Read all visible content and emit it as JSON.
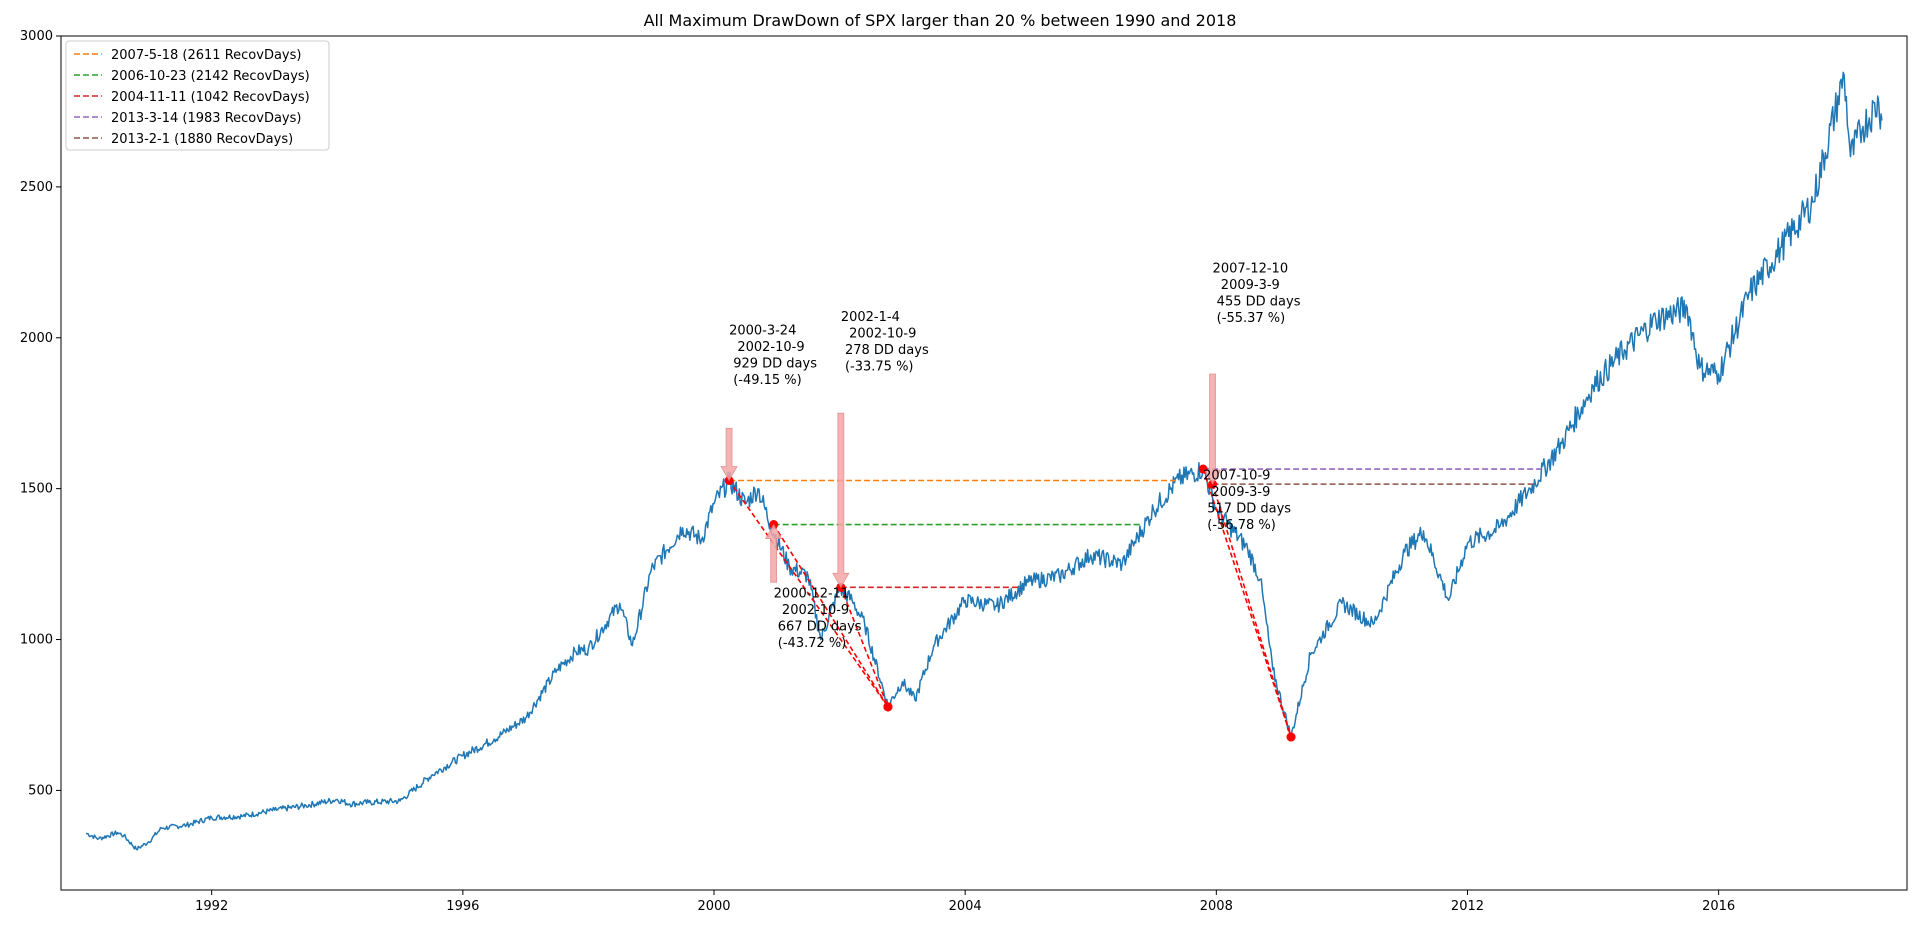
{
  "chart_data": {
    "type": "line",
    "title": "All Maximum DrawDown of SPX larger than 20 % between 1990 and 2018",
    "xlabel": "",
    "ylabel": "",
    "xlim": [
      1989.6,
      2019.0
    ],
    "ylim": [
      170,
      3000
    ],
    "x_ticks": [
      1992,
      1996,
      2000,
      2004,
      2008,
      2012,
      2016
    ],
    "y_ticks": [
      500,
      1000,
      1500,
      2000,
      2500,
      3000
    ],
    "grid": false,
    "legend_position": "top-left",
    "colors": {
      "price": "#1f77b4",
      "drawdown": "#ff0000",
      "arrow": "#f4a6a6"
    },
    "price_series": {
      "name": "",
      "points": [
        [
          1990.0,
          358
        ],
        [
          1990.2,
          340
        ],
        [
          1990.5,
          360
        ],
        [
          1990.6,
          350
        ],
        [
          1990.8,
          305
        ],
        [
          1991.0,
          330
        ],
        [
          1991.2,
          375
        ],
        [
          1991.6,
          385
        ],
        [
          1992.0,
          410
        ],
        [
          1992.5,
          415
        ],
        [
          1993.0,
          435
        ],
        [
          1993.5,
          450
        ],
        [
          1994.0,
          470
        ],
        [
          1994.2,
          455
        ],
        [
          1994.5,
          460
        ],
        [
          1995.0,
          465
        ],
        [
          1995.5,
          550
        ],
        [
          1996.0,
          615
        ],
        [
          1996.5,
          670
        ],
        [
          1997.0,
          740
        ],
        [
          1997.5,
          900
        ],
        [
          1997.8,
          960
        ],
        [
          1998.0,
          970
        ],
        [
          1998.5,
          1120
        ],
        [
          1998.7,
          980
        ],
        [
          1999.0,
          1230
        ],
        [
          1999.5,
          1370
        ],
        [
          1999.8,
          1330
        ],
        [
          2000.0,
          1450
        ],
        [
          2000.24,
          1527
        ],
        [
          2000.5,
          1450
        ],
        [
          2000.7,
          1500
        ],
        [
          2000.9,
          1380
        ],
        [
          2001.2,
          1240
        ],
        [
          2001.5,
          1210
        ],
        [
          2001.7,
          1000
        ],
        [
          2002.0,
          1170
        ],
        [
          2002.2,
          1130
        ],
        [
          2002.4,
          1050
        ],
        [
          2002.77,
          780
        ],
        [
          2003.0,
          860
        ],
        [
          2003.2,
          800
        ],
        [
          2003.5,
          980
        ],
        [
          2004.0,
          1130
        ],
        [
          2004.5,
          1110
        ],
        [
          2005.0,
          1190
        ],
        [
          2005.5,
          1210
        ],
        [
          2006.0,
          1280
        ],
        [
          2006.5,
          1250
        ],
        [
          2007.0,
          1430
        ],
        [
          2007.4,
          1530
        ],
        [
          2007.79,
          1565
        ],
        [
          2008.0,
          1430
        ],
        [
          2008.5,
          1300
        ],
        [
          2008.7,
          1200
        ],
        [
          2008.9,
          900
        ],
        [
          2009.19,
          677
        ],
        [
          2009.5,
          950
        ],
        [
          2010.0,
          1120
        ],
        [
          2010.5,
          1050
        ],
        [
          2011.0,
          1290
        ],
        [
          2011.3,
          1360
        ],
        [
          2011.7,
          1130
        ],
        [
          2012.0,
          1320
        ],
        [
          2012.5,
          1370
        ],
        [
          2013.0,
          1500
        ],
        [
          2013.5,
          1650
        ],
        [
          2014.0,
          1840
        ],
        [
          2014.5,
          1960
        ],
        [
          2015.0,
          2060
        ],
        [
          2015.5,
          2100
        ],
        [
          2015.7,
          1900
        ],
        [
          2016.0,
          1880
        ],
        [
          2016.5,
          2150
        ],
        [
          2017.0,
          2300
        ],
        [
          2017.5,
          2450
        ],
        [
          2018.0,
          2870
        ],
        [
          2018.1,
          2600
        ],
        [
          2018.3,
          2700
        ],
        [
          2018.55,
          2780
        ],
        [
          2018.6,
          2720
        ]
      ]
    },
    "legend": [
      {
        "label": "2007-5-18 (2611 RecovDays)",
        "color": "#ff7f0e"
      },
      {
        "label": "2006-10-23 (2142 RecovDays)",
        "color": "#2ca02c"
      },
      {
        "label": "2004-11-11 (1042 RecovDays)",
        "color": "#d62728"
      },
      {
        "label": "2013-3-14 (1983 RecovDays)",
        "color": "#9467bd"
      },
      {
        "label": "2013-2-1 (1880 RecovDays)",
        "color": "#8c564b"
      }
    ],
    "recovery_lines": [
      {
        "x0": 2000.24,
        "x1": 2007.38,
        "y": 1527,
        "color": "#ff7f0e"
      },
      {
        "x0": 2000.95,
        "x1": 2006.81,
        "y": 1381,
        "color": "#2ca02c"
      },
      {
        "x0": 2002.02,
        "x1": 2004.86,
        "y": 1173,
        "color": "#d62728"
      },
      {
        "x0": 2007.79,
        "x1": 2013.2,
        "y": 1565,
        "color": "#9467bd"
      },
      {
        "x0": 2007.94,
        "x1": 2013.09,
        "y": 1515,
        "color": "#8c564b"
      }
    ],
    "drawdowns": [
      {
        "peak": [
          2000.24,
          1527
        ],
        "trough": [
          2002.77,
          777
        ]
      },
      {
        "peak": [
          2000.95,
          1381
        ],
        "trough": [
          2002.77,
          777
        ]
      },
      {
        "peak": [
          2002.02,
          1173
        ],
        "trough": [
          2002.77,
          777
        ]
      },
      {
        "peak": [
          2007.79,
          1565
        ],
        "trough": [
          2009.19,
          677
        ]
      },
      {
        "peak": [
          2007.94,
          1515
        ],
        "trough": [
          2009.19,
          677
        ]
      }
    ],
    "arrows": [
      {
        "x": 2000.24,
        "y_tail": 1700,
        "y_head": 1527
      },
      {
        "x": 2002.02,
        "y_tail": 1750,
        "y_head": 1173
      },
      {
        "x": 2000.95,
        "y_tail": 1190,
        "y_head": 1381
      },
      {
        "x": 2007.94,
        "y_tail": 1880,
        "y_head": 1515
      }
    ],
    "annotations": [
      {
        "x": 2000.24,
        "y": 2010,
        "lines": [
          "2000-3-24",
          "  2002-10-9",
          " 929 DD days",
          " (-49.15 %)"
        ]
      },
      {
        "x": 2002.02,
        "y": 2055,
        "lines": [
          "2002-1-4",
          "  2002-10-9",
          " 278 DD days",
          " (-33.75 %)"
        ]
      },
      {
        "x": 2007.94,
        "y": 2216,
        "lines": [
          "2007-12-10",
          "  2009-3-9",
          " 455 DD days",
          " (-55.37 %)"
        ]
      },
      {
        "x": 2000.95,
        "y": 1140,
        "lines": [
          "2000-12-11",
          "  2002-10-9",
          " 667 DD days",
          " (-43.72 %)"
        ]
      },
      {
        "x": 2007.79,
        "y": 1530,
        "lines": [
          "2007-10-9",
          "  2009-3-9",
          " 517 DD days",
          " (-56.78 %)"
        ]
      }
    ]
  }
}
